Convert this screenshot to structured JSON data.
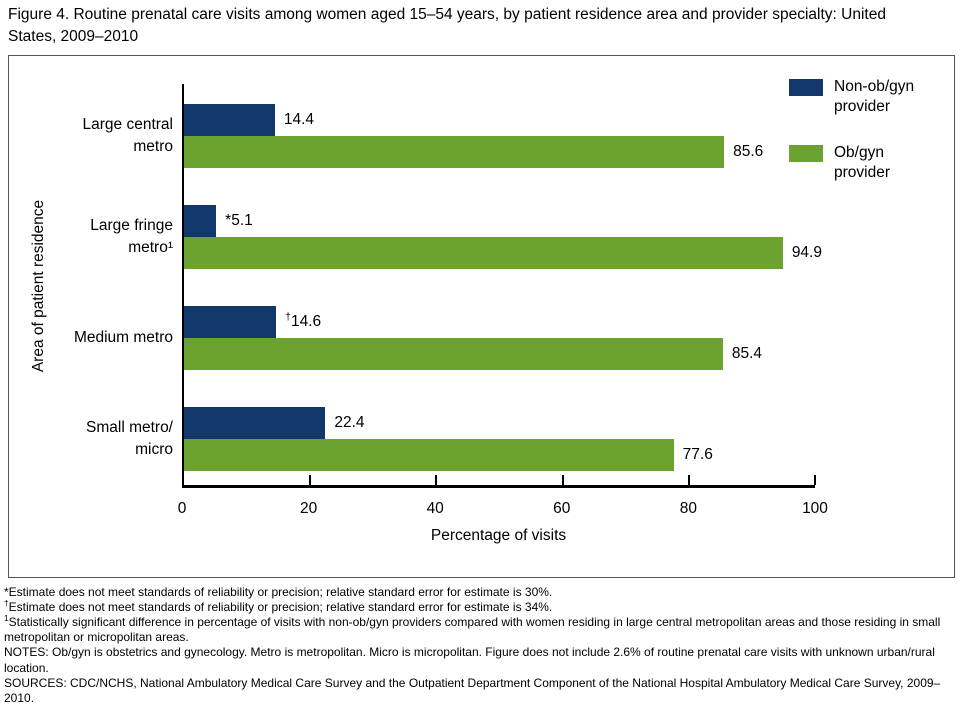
{
  "title": "Figure 4. Routine prenatal care visits among women aged 15–54 years, by patient residence area and provider specialty: United States, 2009–2010",
  "colors": {
    "non_obgyn": "#12386B",
    "obgyn": "#6CA22F"
  },
  "chart_data": {
    "type": "bar",
    "orientation": "horizontal",
    "title": "Figure 4. Routine prenatal care visits among women aged 15–54 years, by patient residence area and provider specialty: United States, 2009–2010",
    "categories": [
      [
        "Large central",
        "metro"
      ],
      [
        "Large fringe",
        "metro¹"
      ],
      [
        "Medium metro"
      ],
      [
        "Small metro/",
        "micro"
      ]
    ],
    "series": [
      {
        "key": "nonobgyn",
        "name": "Non-ob/gyn provider",
        "legend_lines": [
          "Non-ob/gyn",
          "provider"
        ],
        "color": "#12386B",
        "values": [
          14.4,
          5.1,
          14.6,
          22.4
        ],
        "labels": [
          {
            "pre": "",
            "sup": "",
            "val": "14.4"
          },
          {
            "pre": "*",
            "sup": "",
            "val": "5.1"
          },
          {
            "pre": "",
            "sup": "†",
            "val": "14.6"
          },
          {
            "pre": "",
            "sup": "",
            "val": "22.4"
          }
        ]
      },
      {
        "key": "obgyn",
        "name": "Ob/gyn provider",
        "legend_lines": [
          "Ob/gyn",
          "provider"
        ],
        "color": "#6CA22F",
        "values": [
          85.6,
          94.9,
          85.4,
          77.6
        ],
        "labels": [
          {
            "pre": "",
            "sup": "",
            "val": "85.6"
          },
          {
            "pre": "",
            "sup": "",
            "val": "94.9"
          },
          {
            "pre": "",
            "sup": "",
            "val": "85.4"
          },
          {
            "pre": "",
            "sup": "",
            "val": "77.6"
          }
        ]
      }
    ],
    "xlabel": "Percentage of visits",
    "ylabel": "Area of patient residence",
    "xlim": [
      0,
      100
    ],
    "xticks": [
      0,
      20,
      40,
      60,
      80,
      100
    ],
    "grid": false,
    "legend_position": "top-right"
  },
  "footnotes": [
    {
      "marker": "*",
      "sup": false,
      "text": "Estimate does not meet standards of reliability or precision; relative standard error for estimate is 30%."
    },
    {
      "marker": "†",
      "sup": true,
      "text": "Estimate does not meet standards of reliability or precision; relative standard error for estimate is 34%."
    },
    {
      "marker": "1",
      "sup": true,
      "text": "Statistically significant difference in percentage of visits with non-ob/gyn providers compared with women residing in large central metropolitan areas and those residing in small metropolitan or micropolitan areas."
    },
    {
      "marker": "",
      "sup": false,
      "text": "NOTES: Ob/gyn is obstetrics and gynecology. Metro is metropolitan. Micro is micropolitan. Figure does not include 2.6% of routine prenatal care visits with unknown urban/rural location."
    },
    {
      "marker": "",
      "sup": false,
      "text": "SOURCES: CDC/NCHS, National Ambulatory Medical Care Survey and the Outpatient Department Component of the National Hospital Ambulatory Medical Care Survey, 2009–2010."
    }
  ]
}
